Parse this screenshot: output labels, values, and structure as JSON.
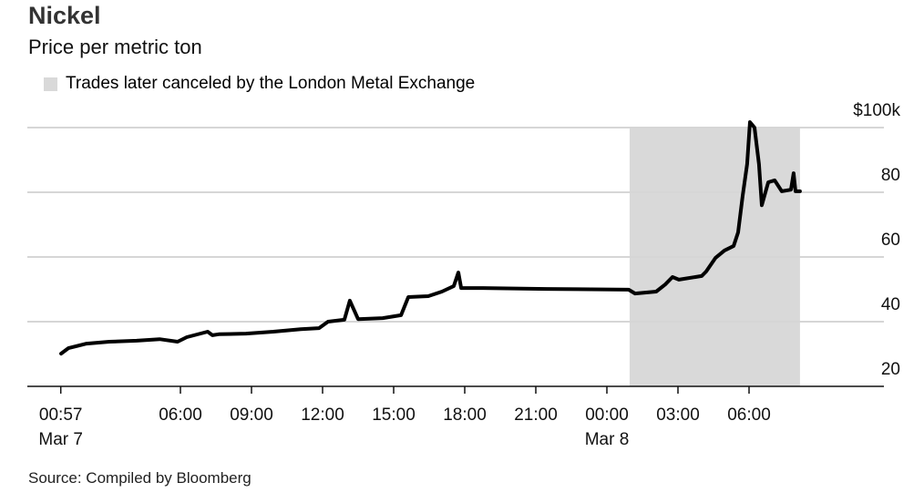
{
  "chart_data": {
    "type": "line",
    "title": "Nickel",
    "subtitle": "Price per metric ton",
    "legend": [
      {
        "label": "Trades later canceled by the London Metal Exchange",
        "color": "#d9d9d9"
      }
    ],
    "shaded_region": {
      "x_start_hours": 24.96,
      "x_end_hours": 32.15,
      "label": "Trades later canceled by the London Metal Exchange"
    },
    "x_unit": "hours since Mar 7 00:00",
    "xlim": [
      0,
      35
    ],
    "ylim": [
      20,
      100
    ],
    "y_ticks": [
      {
        "value": 100,
        "label": "$100k"
      },
      {
        "value": 80,
        "label": "80"
      },
      {
        "value": 60,
        "label": "60"
      },
      {
        "value": 40,
        "label": "40"
      },
      {
        "value": 20,
        "label": "20"
      }
    ],
    "x_ticks": [
      {
        "value": 0.95,
        "label": "00:57",
        "sublabel": "Mar 7"
      },
      {
        "value": 6,
        "label": "06:00"
      },
      {
        "value": 9,
        "label": "09:00"
      },
      {
        "value": 12,
        "label": "12:00"
      },
      {
        "value": 15,
        "label": "15:00"
      },
      {
        "value": 18,
        "label": "18:00"
      },
      {
        "value": 21,
        "label": "21:00"
      },
      {
        "value": 24,
        "label": "00:00",
        "sublabel": "Mar 8"
      },
      {
        "value": 27,
        "label": "03:00"
      },
      {
        "value": 30,
        "label": "06:00"
      }
    ],
    "series": [
      {
        "name": "Nickel price ($k per metric ton)",
        "color": "#000000",
        "x": [
          0.96,
          1.27,
          2.04,
          3.0,
          4.15,
          5.12,
          5.88,
          6.27,
          7.15,
          7.35,
          7.62,
          8.77,
          9.92,
          11.08,
          11.85,
          12.23,
          12.92,
          13.15,
          13.5,
          14.54,
          15.31,
          15.62,
          16.46,
          17.04,
          17.54,
          17.73,
          17.85,
          18.77,
          21.46,
          24.92,
          25.19,
          26.08,
          26.46,
          26.77,
          27.04,
          28.0,
          28.19,
          28.58,
          28.96,
          29.35,
          29.54,
          29.73,
          29.92,
          30.04,
          30.23,
          30.42,
          30.54,
          30.81,
          31.08,
          31.38,
          31.77,
          31.88,
          31.96,
          32.15
        ],
        "y": [
          30.1,
          31.8,
          33.2,
          33.8,
          34.1,
          34.6,
          33.8,
          35.2,
          36.9,
          35.8,
          36.1,
          36.3,
          36.9,
          37.7,
          38.0,
          40.0,
          40.6,
          46.5,
          40.8,
          41.1,
          42.0,
          47.6,
          47.9,
          49.3,
          51.0,
          55.2,
          50.4,
          50.4,
          50.1,
          49.9,
          48.7,
          49.3,
          51.5,
          53.8,
          53.0,
          54.1,
          55.5,
          59.7,
          62.0,
          63.4,
          67.6,
          78.9,
          88.7,
          101.7,
          100.0,
          88.7,
          76.0,
          83.1,
          83.7,
          80.3,
          80.8,
          85.9,
          80.3,
          80.3
        ]
      }
    ],
    "source": "Source: Compiled by Bloomberg"
  }
}
